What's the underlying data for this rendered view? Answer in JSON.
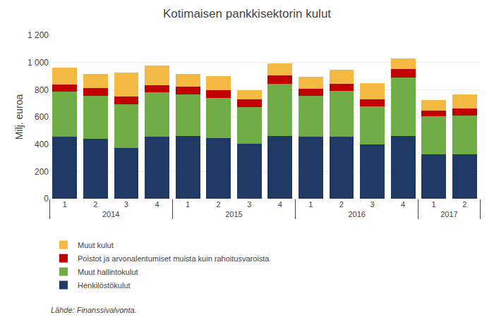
{
  "chart_data": {
    "type": "bar",
    "stacked": true,
    "title": "Kotimaisen pankkisektorin kulut",
    "ylabel": "Milj. euroa",
    "annotations": [
      "Lähde: Finanssivalvonta."
    ],
    "categories": [
      "1",
      "2",
      "3",
      "4",
      "1",
      "2",
      "3",
      "4",
      "1",
      "2",
      "3",
      "4",
      "1",
      "2"
    ],
    "groups": [
      "2014",
      "2014",
      "2014",
      "2014",
      "2015",
      "2015",
      "2015",
      "2015",
      "2016",
      "2016",
      "2016",
      "2016",
      "2017",
      "2017"
    ],
    "series": [
      {
        "name": "Henkilöstökulut",
        "color": "#1F3864",
        "values": [
          455,
          440,
          375,
          455,
          460,
          445,
          405,
          460,
          455,
          455,
          400,
          460,
          325,
          325
        ]
      },
      {
        "name": "Muut hallintokulut",
        "color": "#70AD47",
        "values": [
          330,
          315,
          320,
          325,
          305,
          295,
          270,
          385,
          300,
          335,
          280,
          430,
          280,
          285
        ]
      },
      {
        "name": "Poistot ja arvonalentumiset muista kuin rahoitusvaroista",
        "color": "#C00000",
        "values": [
          55,
          55,
          55,
          55,
          55,
          55,
          55,
          60,
          50,
          55,
          50,
          60,
          40,
          50
        ]
      },
      {
        "name": "Muut kulut",
        "color": "#F4B942",
        "values": [
          120,
          105,
          175,
          145,
          95,
          105,
          65,
          90,
          90,
          100,
          120,
          80,
          80,
          105
        ]
      }
    ],
    "ylim": [
      0,
      1200
    ],
    "yticks": [
      0,
      200,
      400,
      600,
      800,
      {
        "value": 1000,
        "label": "1 000"
      },
      {
        "value": 1200,
        "label": "1 200"
      }
    ],
    "grid": true,
    "legend": "bottom"
  }
}
